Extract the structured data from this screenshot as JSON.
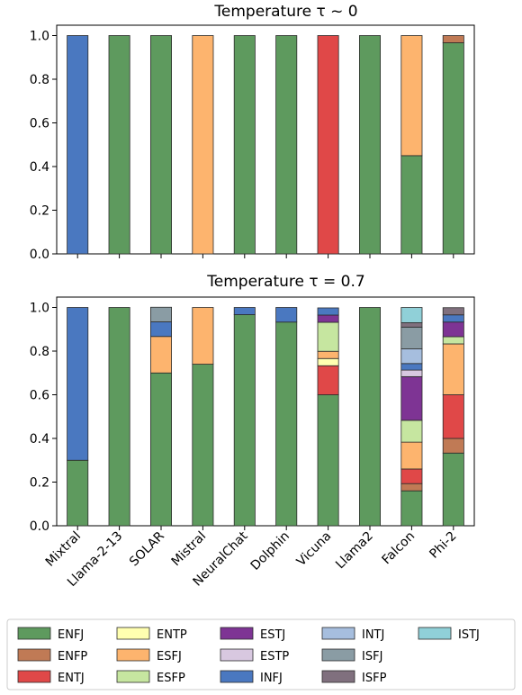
{
  "chart_data": [
    {
      "type": "bar",
      "stacked": true,
      "title": "Temperature τ ~ 0",
      "xlabel": "",
      "ylabel": "",
      "ylim": [
        0,
        1
      ],
      "yticks": [
        "0.0",
        "0.2",
        "0.4",
        "0.6",
        "0.8",
        "1.0"
      ],
      "categories": [
        "Mixtral",
        "Llama-2-13",
        "SOLAR",
        "Mistral",
        "NeuralChat",
        "Dolphin",
        "Vicuna",
        "Llama2",
        "Falcon",
        "Phi-2"
      ],
      "series": [
        {
          "name": "ENFJ",
          "values": [
            0,
            1,
            1,
            0,
            1,
            1,
            0,
            1,
            0.45,
            0.967
          ]
        },
        {
          "name": "ENFP",
          "values": [
            0,
            0,
            0,
            0,
            0,
            0,
            0,
            0,
            0,
            0.033
          ]
        },
        {
          "name": "ENTJ",
          "values": [
            0,
            0,
            0,
            0,
            0,
            0,
            1,
            0,
            0,
            0
          ]
        },
        {
          "name": "ENTP",
          "values": [
            0,
            0,
            0,
            0,
            0,
            0,
            0,
            0,
            0,
            0
          ]
        },
        {
          "name": "ESFJ",
          "values": [
            0,
            0,
            0,
            1,
            0,
            0,
            0,
            0,
            0.55,
            0
          ]
        },
        {
          "name": "ESFP",
          "values": [
            0,
            0,
            0,
            0,
            0,
            0,
            0,
            0,
            0,
            0
          ]
        },
        {
          "name": "ESTJ",
          "values": [
            0,
            0,
            0,
            0,
            0,
            0,
            0,
            0,
            0,
            0
          ]
        },
        {
          "name": "ESTP",
          "values": [
            0,
            0,
            0,
            0,
            0,
            0,
            0,
            0,
            0,
            0
          ]
        },
        {
          "name": "INFJ",
          "values": [
            1,
            0,
            0,
            0,
            0,
            0,
            0,
            0,
            0,
            0
          ]
        },
        {
          "name": "INTJ",
          "values": [
            0,
            0,
            0,
            0,
            0,
            0,
            0,
            0,
            0,
            0
          ]
        },
        {
          "name": "ISFJ",
          "values": [
            0,
            0,
            0,
            0,
            0,
            0,
            0,
            0,
            0,
            0
          ]
        },
        {
          "name": "ISFP",
          "values": [
            0,
            0,
            0,
            0,
            0,
            0,
            0,
            0,
            0,
            0
          ]
        },
        {
          "name": "ISTJ",
          "values": [
            0,
            0,
            0,
            0,
            0,
            0,
            0,
            0,
            0,
            0
          ]
        }
      ]
    },
    {
      "type": "bar",
      "stacked": true,
      "title": "Temperature τ = 0.7",
      "xlabel": "",
      "ylabel": "",
      "ylim": [
        0,
        1
      ],
      "yticks": [
        "0.0",
        "0.2",
        "0.4",
        "0.6",
        "0.8",
        "1.0"
      ],
      "categories": [
        "Mixtral",
        "Llama-2-13",
        "SOLAR",
        "Mistral",
        "NeuralChat",
        "Dolphin",
        "Vicuna",
        "Llama2",
        "Falcon",
        "Phi-2"
      ],
      "series": [
        {
          "name": "ENFJ",
          "values": [
            0.3,
            1,
            0.7,
            0.74,
            0.967,
            0.933,
            0.6,
            1,
            0.16,
            0.333
          ]
        },
        {
          "name": "ENFP",
          "values": [
            0,
            0,
            0,
            0,
            0,
            0,
            0,
            0,
            0.033,
            0.067
          ]
        },
        {
          "name": "ENTJ",
          "values": [
            0,
            0,
            0,
            0,
            0,
            0,
            0.133,
            0,
            0.067,
            0.2
          ]
        },
        {
          "name": "ENTP",
          "values": [
            0,
            0,
            0,
            0,
            0,
            0,
            0.033,
            0,
            0,
            0
          ]
        },
        {
          "name": "ESFJ",
          "values": [
            0,
            0,
            0.167,
            0.26,
            0,
            0,
            0.033,
            0,
            0.123,
            0.233
          ]
        },
        {
          "name": "ESFP",
          "values": [
            0,
            0,
            0,
            0,
            0,
            0,
            0.133,
            0,
            0.1,
            0.033
          ]
        },
        {
          "name": "ESTJ",
          "values": [
            0,
            0,
            0,
            0,
            0,
            0,
            0.033,
            0,
            0.2,
            0.067
          ]
        },
        {
          "name": "ESTP",
          "values": [
            0,
            0,
            0,
            0,
            0,
            0,
            0,
            0,
            0.03,
            0
          ]
        },
        {
          "name": "INFJ",
          "values": [
            0.7,
            0,
            0.067,
            0,
            0.033,
            0.067,
            0.033,
            0,
            0.03,
            0.033
          ]
        },
        {
          "name": "INTJ",
          "values": [
            0,
            0,
            0,
            0,
            0,
            0,
            0,
            0,
            0.067,
            0
          ]
        },
        {
          "name": "ISFJ",
          "values": [
            0,
            0,
            0.067,
            0,
            0,
            0,
            0,
            0,
            0.1,
            0
          ]
        },
        {
          "name": "ISFP",
          "values": [
            0,
            0,
            0,
            0,
            0,
            0,
            0,
            0,
            0.02,
            0.033
          ]
        },
        {
          "name": "ISTJ",
          "values": [
            0,
            0,
            0,
            0,
            0,
            0,
            0,
            0,
            0.07,
            0
          ]
        }
      ]
    }
  ],
  "legend": {
    "placement": "bottom",
    "entries": [
      {
        "label": "ENFJ",
        "color": "#5e9a5e"
      },
      {
        "label": "ENFP",
        "color": "#c07a55"
      },
      {
        "label": "ENTJ",
        "color": "#e04848"
      },
      {
        "label": "ENTP",
        "color": "#ffffb0"
      },
      {
        "label": "ESFJ",
        "color": "#fdb46e"
      },
      {
        "label": "ESFP",
        "color": "#c6e6a0"
      },
      {
        "label": "ESTJ",
        "color": "#7e3494"
      },
      {
        "label": "ESTP",
        "color": "#d8c8e0"
      },
      {
        "label": "INFJ",
        "color": "#4a78c0"
      },
      {
        "label": "INTJ",
        "color": "#a6bede"
      },
      {
        "label": "ISFJ",
        "color": "#8a9ca4"
      },
      {
        "label": "ISFP",
        "color": "#80707e"
      },
      {
        "label": "ISTJ",
        "color": "#90d0d8"
      }
    ]
  }
}
